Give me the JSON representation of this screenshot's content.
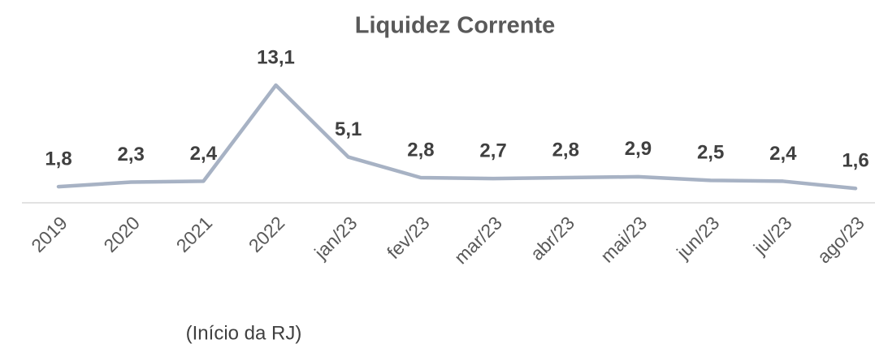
{
  "chart_data": {
    "type": "line",
    "title": "Liquidez Corrente",
    "categories": [
      "2019",
      "2020",
      "2021",
      "2022",
      "jan/23",
      "fev/23",
      "mar/23",
      "abr/23",
      "mai/23",
      "jun/23",
      "jul/23",
      "ago/23"
    ],
    "series": [
      {
        "color": "#a7b2c4",
        "values": [
          1.8,
          2.3,
          2.4,
          13.1,
          5.1,
          2.8,
          2.7,
          2.8,
          2.9,
          2.5,
          2.4,
          1.6
        ],
        "value_labels": [
          "1,8",
          "2,3",
          "2,4",
          "13,1",
          "5,1",
          "2,8",
          "2,7",
          "2,8",
          "2,9",
          "2,5",
          "2,4",
          "1,6"
        ]
      }
    ],
    "annotations": [
      {
        "text": "(Início da RJ)"
      }
    ]
  }
}
